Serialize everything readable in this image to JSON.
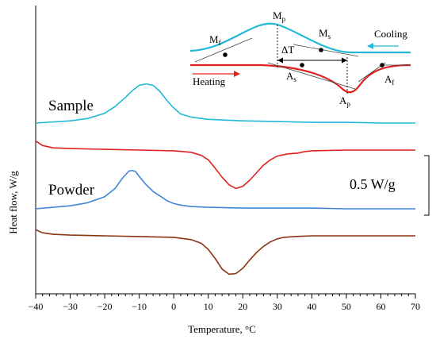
{
  "chart_data": {
    "type": "line",
    "xlabel": "Temperature, °C",
    "ylabel": "Heat flow, W/g",
    "xlim": [
      -40,
      70
    ],
    "x_ticks": [
      "−40",
      "−30",
      "−20",
      "−10",
      "0",
      "10",
      "20",
      "30",
      "40",
      "50",
      "60",
      "70"
    ],
    "grid": false,
    "scale_bar": "0.5 W/g",
    "colors": {
      "sample_cooling": "#22b8d8",
      "sample_heating": "#e0201f",
      "powder_cooling": "#3f86d6",
      "powder_heating": "#8b3512"
    },
    "series": [
      {
        "name": "Sample",
        "x": [
          -40,
          -30,
          -25,
          -20,
          -17,
          -14,
          -12,
          -10,
          -8,
          -6,
          -4,
          -2,
          -1,
          0,
          2,
          5,
          10,
          20,
          30,
          40,
          50,
          60,
          70
        ],
        "y": [
          0.0,
          0.03,
          0.06,
          0.13,
          0.22,
          0.34,
          0.43,
          0.5,
          0.52,
          0.5,
          0.42,
          0.3,
          0.25,
          0.2,
          0.12,
          0.08,
          0.05,
          0.03,
          0.02,
          0.01,
          0.01,
          0.0,
          0.0
        ]
      },
      {
        "x": [
          -40,
          -38,
          -35,
          -30,
          -20,
          -10,
          0,
          5,
          8,
          10,
          12,
          14,
          16,
          18,
          20,
          22,
          24,
          26,
          28,
          30,
          33,
          36,
          38,
          40,
          50,
          60,
          70
        ],
        "y": [
          0.12,
          0.06,
          0.03,
          0.02,
          0.01,
          0.0,
          -0.01,
          -0.03,
          -0.07,
          -0.13,
          -0.24,
          -0.36,
          -0.46,
          -0.51,
          -0.48,
          -0.4,
          -0.3,
          -0.2,
          -0.13,
          -0.08,
          -0.05,
          -0.04,
          -0.02,
          -0.01,
          0.0,
          0.0,
          0.0
        ]
      },
      {
        "name": "Powder",
        "x": [
          -40,
          -30,
          -25,
          -20,
          -17,
          -15,
          -13,
          -12,
          -11,
          -10,
          -8,
          -6,
          -4,
          -2,
          0,
          2,
          5,
          10,
          20,
          30,
          40,
          50,
          60,
          70
        ],
        "y": [
          0.0,
          0.04,
          0.08,
          0.16,
          0.27,
          0.4,
          0.5,
          0.51,
          0.49,
          0.43,
          0.32,
          0.23,
          0.17,
          0.11,
          0.07,
          0.05,
          0.03,
          0.02,
          0.01,
          0.01,
          0.01,
          0.0,
          0.0,
          0.0
        ]
      },
      {
        "x": [
          -40,
          -38,
          -35,
          -30,
          -20,
          -10,
          0,
          5,
          8,
          10,
          12,
          14,
          16,
          18,
          20,
          22,
          24,
          26,
          28,
          30,
          32,
          35,
          40,
          50,
          60,
          70
        ],
        "y": [
          0.08,
          0.04,
          0.02,
          0.01,
          0.0,
          -0.01,
          -0.02,
          -0.05,
          -0.1,
          -0.18,
          -0.3,
          -0.44,
          -0.51,
          -0.5,
          -0.43,
          -0.32,
          -0.22,
          -0.14,
          -0.08,
          -0.04,
          -0.02,
          -0.01,
          0.0,
          0.0,
          0.0,
          0.0
        ]
      }
    ],
    "inset": {
      "labels": {
        "mp": "M",
        "mp_sub": "p",
        "mf": "M",
        "mf_sub": "f",
        "ms": "M",
        "ms_sub": "s",
        "ap": "A",
        "ap_sub": "p",
        "as": "A",
        "as_sub": "s",
        "af": "A",
        "af_sub": "f",
        "delta_t": "ΔT",
        "cooling": "Cooling",
        "heating": "Heating"
      }
    }
  }
}
